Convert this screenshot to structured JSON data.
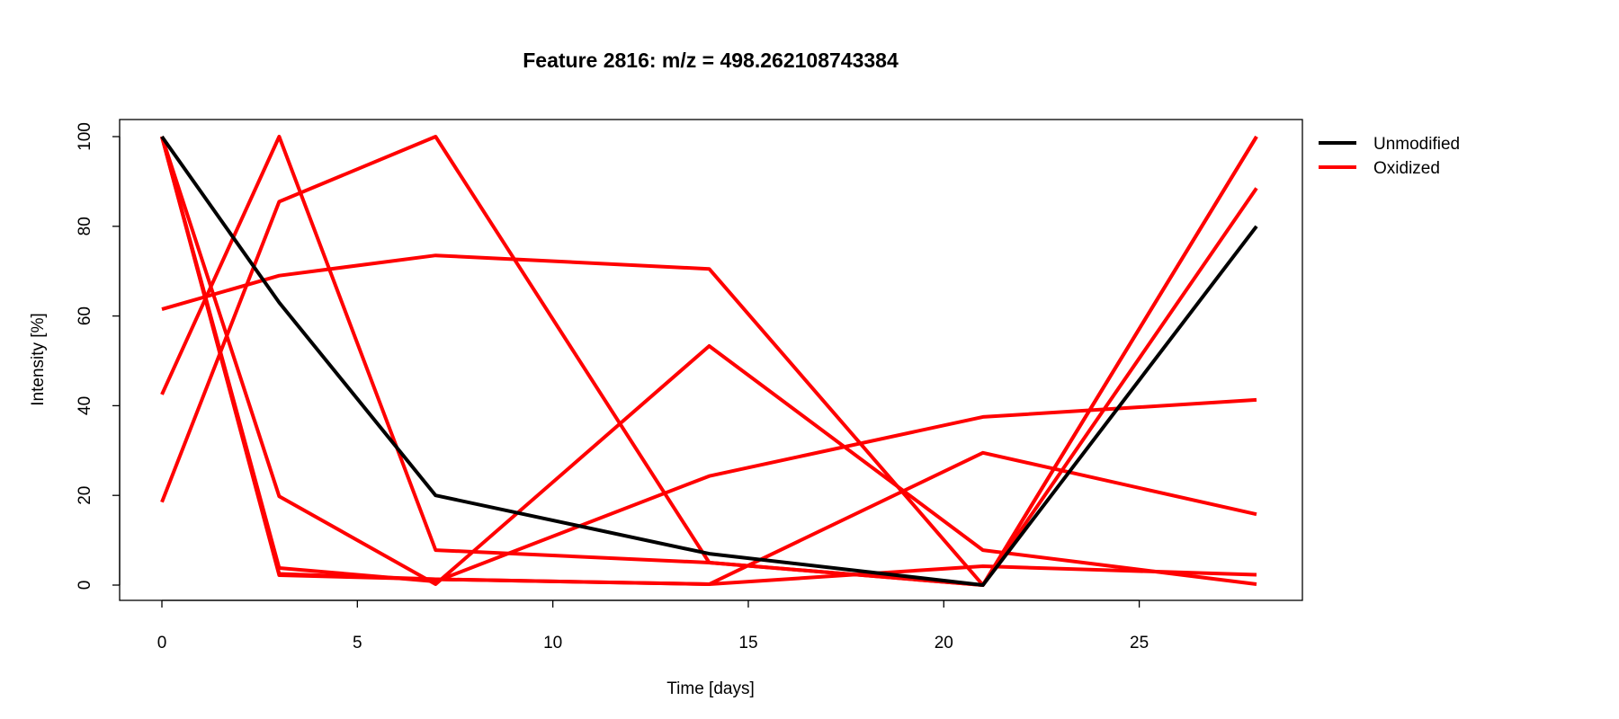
{
  "chart_data": {
    "type": "line",
    "title": "Feature 2816: m/z = 498.262108743384",
    "xlabel": "Time [days]",
    "ylabel": "Intensity [%]",
    "x": [
      0,
      3,
      7,
      14,
      21,
      28
    ],
    "xlim": [
      0,
      28
    ],
    "ylim": [
      0,
      100
    ],
    "x_ticks": [
      0,
      5,
      10,
      15,
      20,
      25
    ],
    "y_ticks": [
      0,
      20,
      40,
      60,
      80,
      100
    ],
    "grid": false,
    "legend_position": "outside-top-right",
    "legend": [
      {
        "label": "Unmodified",
        "color": "#000000"
      },
      {
        "label": "Oxidized",
        "color": "#ff0000"
      }
    ],
    "series": [
      {
        "group": "Unmodified",
        "color": "#000000",
        "values": [
          100,
          63,
          20,
          7,
          0,
          80
        ]
      },
      {
        "group": "Oxidized",
        "color": "#ff0000",
        "values": [
          61.5,
          69,
          73.5,
          70.5,
          0,
          100
        ]
      },
      {
        "group": "Oxidized",
        "color": "#ff0000",
        "values": [
          42.5,
          100,
          7.8,
          5,
          0,
          88.5
        ]
      },
      {
        "group": "Oxidized",
        "color": "#ff0000",
        "values": [
          18.5,
          85.5,
          100,
          5,
          0,
          100
        ]
      },
      {
        "group": "Oxidized",
        "color": "#ff0000",
        "values": [
          100,
          19.8,
          0.2,
          53.3,
          7.8,
          0.2
        ]
      },
      {
        "group": "Oxidized",
        "color": "#ff0000",
        "values": [
          100,
          3.8,
          0.8,
          24.3,
          37.5,
          41.3
        ]
      },
      {
        "group": "Oxidized",
        "color": "#ff0000",
        "values": [
          100,
          2.2,
          1.3,
          0.2,
          29.5,
          15.8
        ]
      },
      {
        "group": "Oxidized",
        "color": "#ff0000",
        "values": [
          100,
          2.5,
          1.3,
          0.2,
          4.2,
          2.3
        ]
      }
    ]
  }
}
